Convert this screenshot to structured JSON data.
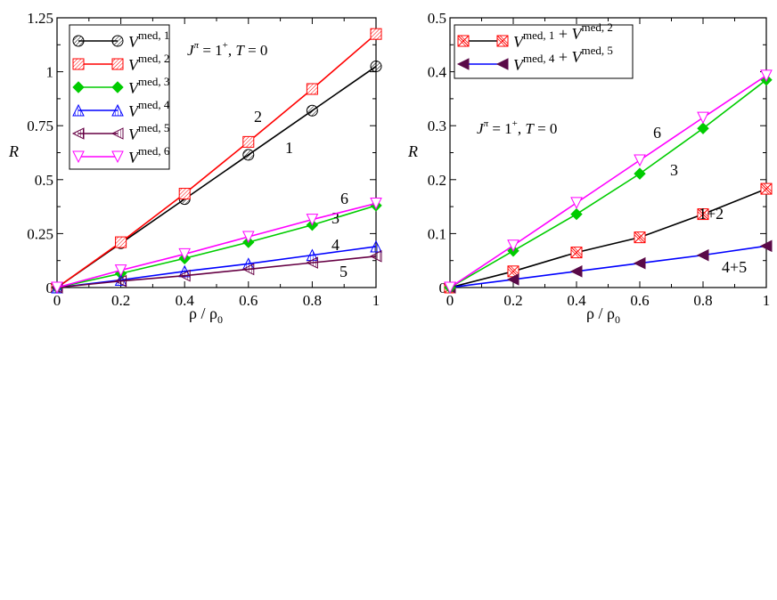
{
  "chart_data": [
    {
      "type": "line",
      "panel": "left",
      "title": "",
      "xlabel": "ρ / ρ0",
      "ylabel": "R",
      "xlim": [
        0,
        1
      ],
      "ylim": [
        0,
        1.25
      ],
      "x_ticks": [
        0,
        0.2,
        0.4,
        0.6,
        0.8,
        1
      ],
      "x_tick_labels": [
        "0",
        "0.2",
        "0.4",
        "0.6",
        "0.8",
        "1"
      ],
      "y_ticks": [
        0,
        0.25,
        0.5,
        0.75,
        1,
        1.25
      ],
      "y_tick_labels": [
        "0",
        "0.25",
        "0.5",
        "0.75",
        "1",
        "1.25"
      ],
      "legend_placement": "top-left",
      "annotation": "J^π = 1^+, T = 0",
      "x": [
        0,
        0.2,
        0.4,
        0.6,
        0.8,
        1
      ],
      "series": [
        {
          "name": "V med, 1",
          "label": "1",
          "color": "#000000",
          "marker": "circle-hatched",
          "values": [
            0,
            0.205,
            0.41,
            0.615,
            0.82,
            1.025
          ]
        },
        {
          "name": "V med, 2",
          "label": "2",
          "color": "#ff0000",
          "marker": "square-hatched",
          "values": [
            0,
            0.21,
            0.435,
            0.675,
            0.92,
            1.175
          ]
        },
        {
          "name": "V med, 3",
          "label": "3",
          "color": "#00cc00",
          "marker": "diamond-filled",
          "values": [
            0,
            0.065,
            0.135,
            0.21,
            0.29,
            0.38
          ]
        },
        {
          "name": "V med, 4",
          "label": "4",
          "color": "#0000ff",
          "marker": "triangle-up-hatched",
          "values": [
            0,
            0.035,
            0.075,
            0.11,
            0.15,
            0.19
          ]
        },
        {
          "name": "V med, 5",
          "label": "5",
          "color": "#660044",
          "marker": "triangle-left-hatched",
          "values": [
            0,
            0.03,
            0.055,
            0.085,
            0.115,
            0.145
          ]
        },
        {
          "name": "V med, 6",
          "label": "6",
          "color": "#ff00ff",
          "marker": "triangle-down",
          "values": [
            0,
            0.08,
            0.155,
            0.235,
            0.315,
            0.39
          ]
        }
      ]
    },
    {
      "type": "line",
      "panel": "right",
      "title": "",
      "xlabel": "ρ / ρ0",
      "ylabel": "R",
      "xlim": [
        0,
        1
      ],
      "ylim": [
        0,
        0.5
      ],
      "x_ticks": [
        0,
        0.2,
        0.4,
        0.6,
        0.8,
        1
      ],
      "x_tick_labels": [
        "0",
        "0.2",
        "0.4",
        "0.6",
        "0.8",
        "1"
      ],
      "y_ticks": [
        0,
        0.1,
        0.2,
        0.3,
        0.4,
        0.5
      ],
      "y_tick_labels": [
        "0",
        "0.1",
        "0.2",
        "0.3",
        "0.4",
        "0.5"
      ],
      "legend_placement": "top-left",
      "annotation": "J^π = 1^+, T = 0",
      "x": [
        0,
        0.2,
        0.4,
        0.6,
        0.8,
        1
      ],
      "series": [
        {
          "name": "V med, 1 + V med, 2",
          "label": "1+2",
          "color": "#000000",
          "marker_color": "#ff0000",
          "marker": "square-crossed",
          "values": [
            0,
            0.03,
            0.065,
            0.093,
            0.136,
            0.183
          ]
        },
        {
          "name": "V med, 4 + V med, 5",
          "label": "4+5",
          "color": "#0000ff",
          "marker_color": "#5a0a48",
          "marker": "triangle-left-filled",
          "values": [
            0,
            0.015,
            0.03,
            0.045,
            0.06,
            0.077
          ]
        },
        {
          "name": "",
          "label": "3",
          "color": "#00cc00",
          "marker": "diamond-filled",
          "in_legend": false,
          "values": [
            0,
            0.068,
            0.136,
            0.211,
            0.295,
            0.385
          ]
        },
        {
          "name": "",
          "label": "6",
          "color": "#ff00ff",
          "marker": "triangle-down",
          "in_legend": false,
          "values": [
            0,
            0.078,
            0.157,
            0.236,
            0.315,
            0.393
          ]
        }
      ]
    }
  ]
}
